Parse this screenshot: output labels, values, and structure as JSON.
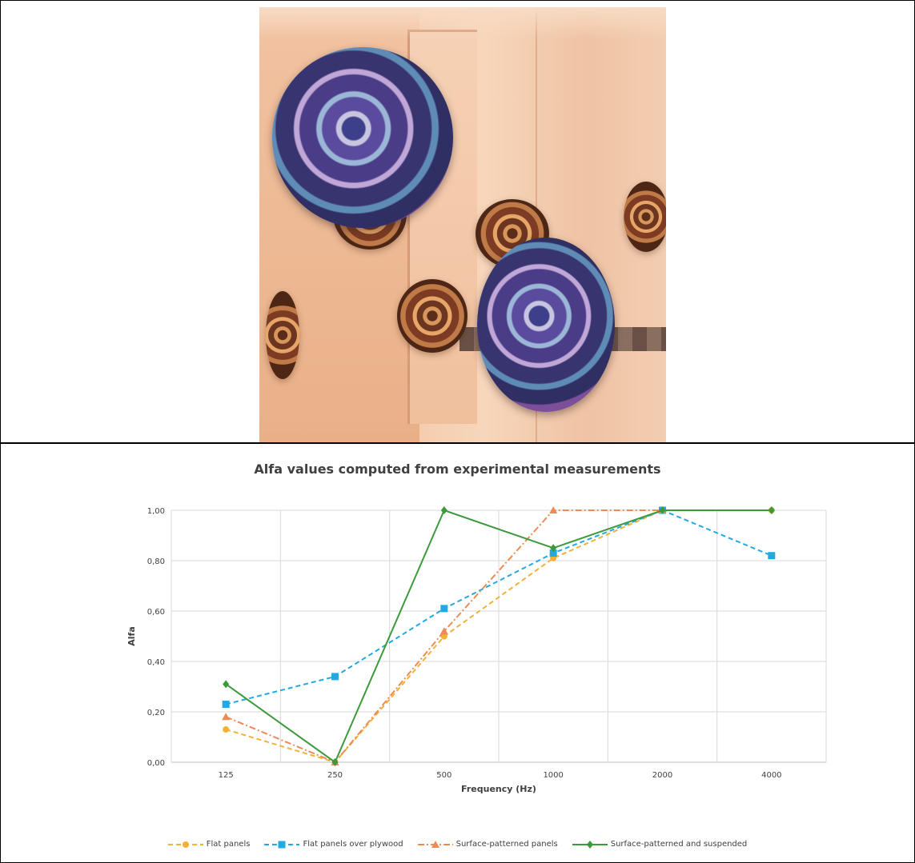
{
  "chart_data": {
    "type": "line",
    "title": "Alfa values computed from experimental measurements",
    "xlabel": "Frequency (Hz)",
    "ylabel": "Alfa",
    "categories": [
      "125",
      "250",
      "500",
      "1000",
      "2000",
      "4000"
    ],
    "yticks": [
      "0,00",
      "0,20",
      "0,40",
      "0,60",
      "0,80",
      "1,00"
    ],
    "ylim": [
      0,
      1
    ],
    "grid": true,
    "legend_position": "bottom",
    "series": [
      {
        "name": "Flat panels",
        "values": [
          0.13,
          0.0,
          0.5,
          0.81,
          1.0,
          1.0
        ],
        "color": "#f2b134",
        "dash": "dashed",
        "marker": "circle"
      },
      {
        "name": "Flat panels over plywood",
        "values": [
          0.23,
          0.34,
          0.61,
          0.83,
          1.0,
          0.82
        ],
        "color": "#23a9e1",
        "dash": "dashed",
        "marker": "square"
      },
      {
        "name": "Surface-patterned panels",
        "values": [
          0.18,
          0.0,
          0.52,
          1.0,
          1.0,
          null
        ],
        "color": "#f08a55",
        "dash": "dashdot",
        "marker": "triangle"
      },
      {
        "name": "Surface-patterned and suspended",
        "values": [
          0.31,
          0.0,
          1.0,
          0.85,
          1.0,
          1.0
        ],
        "color": "#3c9a3c",
        "dash": "solid",
        "marker": "diamond"
      }
    ]
  }
}
